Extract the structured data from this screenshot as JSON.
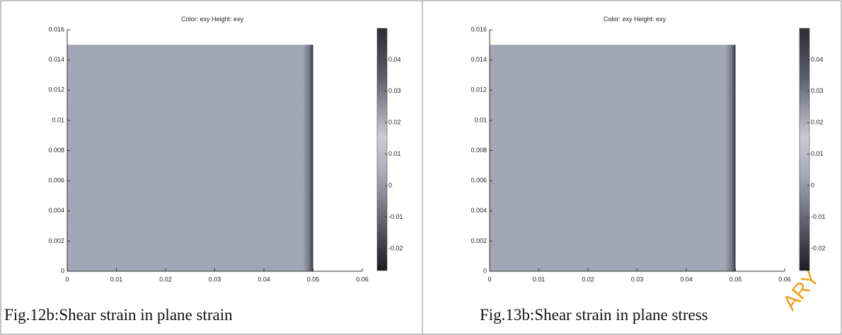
{
  "chart_data": [
    {
      "type": "heatmap",
      "title": "Color: exy  Height: exy",
      "caption": "Fig.12b:Shear strain in plane strain",
      "xlim": [
        0,
        0.06
      ],
      "ylim": [
        0,
        0.016
      ],
      "field_xlim": [
        0,
        0.05
      ],
      "field_ylim": [
        0,
        0.015
      ],
      "xticks": [
        0,
        0.01,
        0.02,
        0.03,
        0.04,
        0.05,
        0.06
      ],
      "yticks": [
        0,
        0.002,
        0.004,
        0.006,
        0.008,
        0.01,
        0.012,
        0.014,
        0.016
      ],
      "clim": [
        -0.027,
        0.05
      ],
      "cticks": [
        -0.02,
        -0.01,
        0,
        0.01,
        0.02,
        0.03,
        0.04
      ]
    },
    {
      "type": "heatmap",
      "title": "Color: exy  Height: exy",
      "caption": "Fig.13b:Shear strain in plane stress",
      "xlim": [
        0,
        0.06
      ],
      "ylim": [
        0,
        0.016
      ],
      "field_xlim": [
        0,
        0.05
      ],
      "field_ylim": [
        0,
        0.015
      ],
      "xticks": [
        0,
        0.01,
        0.02,
        0.03,
        0.04,
        0.05,
        0.06
      ],
      "yticks": [
        0,
        0.002,
        0.004,
        0.006,
        0.008,
        0.01,
        0.012,
        0.014,
        0.016
      ],
      "clim": [
        -0.027,
        0.05
      ],
      "cticks": [
        -0.02,
        -0.01,
        0,
        0.01,
        0.02,
        0.03,
        0.04
      ]
    }
  ],
  "watermark": "ARY"
}
